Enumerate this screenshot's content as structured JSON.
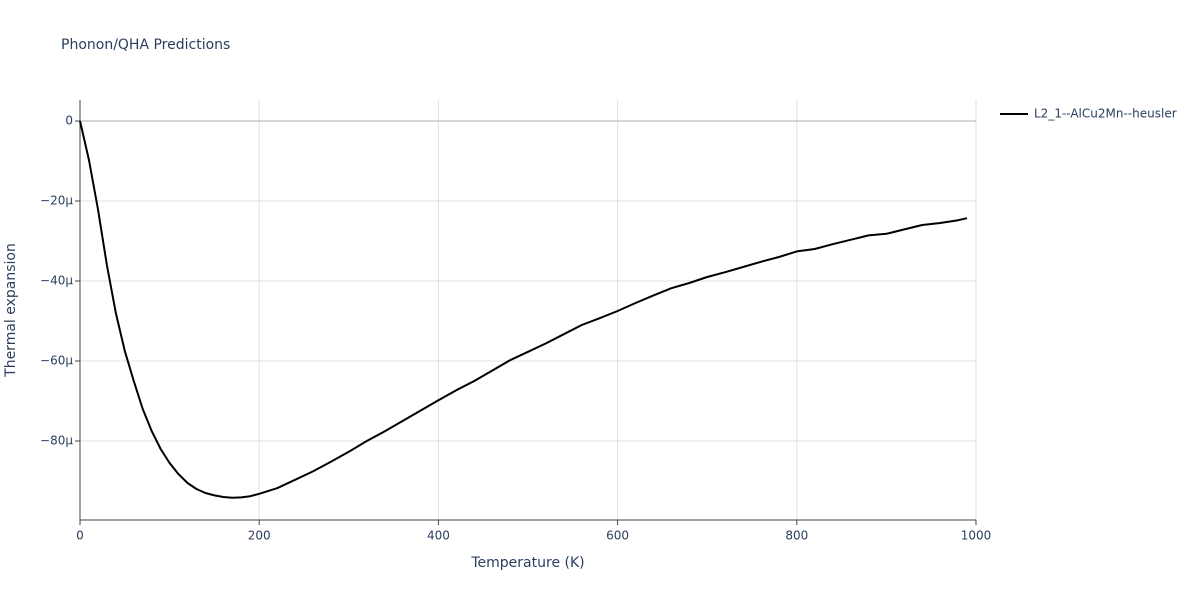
{
  "chart_data": {
    "type": "line",
    "title": "Phonon/QHA Predictions",
    "x_label": "Temperature (K)",
    "y_label": "Thermal expansion",
    "xlim": [
      0,
      1000
    ],
    "xticks": [
      0,
      200,
      400,
      600,
      800,
      1000
    ],
    "ylim": [
      -9.975e-05,
      5.25e-06
    ],
    "yticks": [
      {
        "value": -8e-05,
        "label": "−80µ"
      },
      {
        "value": -6e-05,
        "label": "−60µ"
      },
      {
        "value": -4e-05,
        "label": "−40µ"
      },
      {
        "value": -2e-05,
        "label": "−20µ"
      },
      0
    ],
    "grid": true,
    "legend": "right",
    "x": [
      0,
      10,
      20,
      30,
      40,
      50,
      60,
      70,
      80,
      90,
      100,
      110,
      120,
      130,
      140,
      150,
      160,
      170,
      180,
      190,
      200,
      220,
      240,
      260,
      280,
      300,
      320,
      340,
      360,
      380,
      400,
      420,
      440,
      460,
      480,
      500,
      520,
      540,
      560,
      580,
      600,
      620,
      640,
      660,
      680,
      700,
      720,
      740,
      760,
      780,
      800,
      820,
      840,
      860,
      880,
      900,
      920,
      940,
      960,
      980,
      990
    ],
    "series": [
      {
        "name": "L2_1--AlCu2Mn--heusler",
        "color": "#000000",
        "values": [
          0,
          -9.75e-06,
          -2.2e-05,
          -3.6e-05,
          -4.8e-05,
          -5.75e-05,
          -6.5e-05,
          -7.2e-05,
          -7.75e-05,
          -8.2e-05,
          -8.55e-05,
          -8.83e-05,
          -9.05e-05,
          -9.2e-05,
          -9.3e-05,
          -9.36e-05,
          -9.4e-05,
          -9.42e-05,
          -9.41e-05,
          -9.38e-05,
          -9.32e-05,
          -9.18e-05,
          -8.97e-05,
          -8.76e-05,
          -8.52e-05,
          -8.27e-05,
          -8e-05,
          -7.76e-05,
          -7.5e-05,
          -7.24e-05,
          -6.98e-05,
          -6.73e-05,
          -6.5e-05,
          -6.24e-05,
          -5.98e-05,
          -5.77e-05,
          -5.56e-05,
          -5.33e-05,
          -5.1e-05,
          -4.93e-05,
          -4.75e-05,
          -4.55e-05,
          -4.36e-05,
          -4.18e-05,
          -4.05e-05,
          -3.9e-05,
          -3.78e-05,
          -3.65e-05,
          -3.52e-05,
          -3.4e-05,
          -3.26e-05,
          -3.2e-05,
          -3.08e-05,
          -2.97e-05,
          -2.86e-05,
          -2.82e-05,
          -2.71e-05,
          -2.6e-05,
          -2.55e-05,
          -2.48e-05,
          -2.43e-05
        ]
      }
    ]
  }
}
